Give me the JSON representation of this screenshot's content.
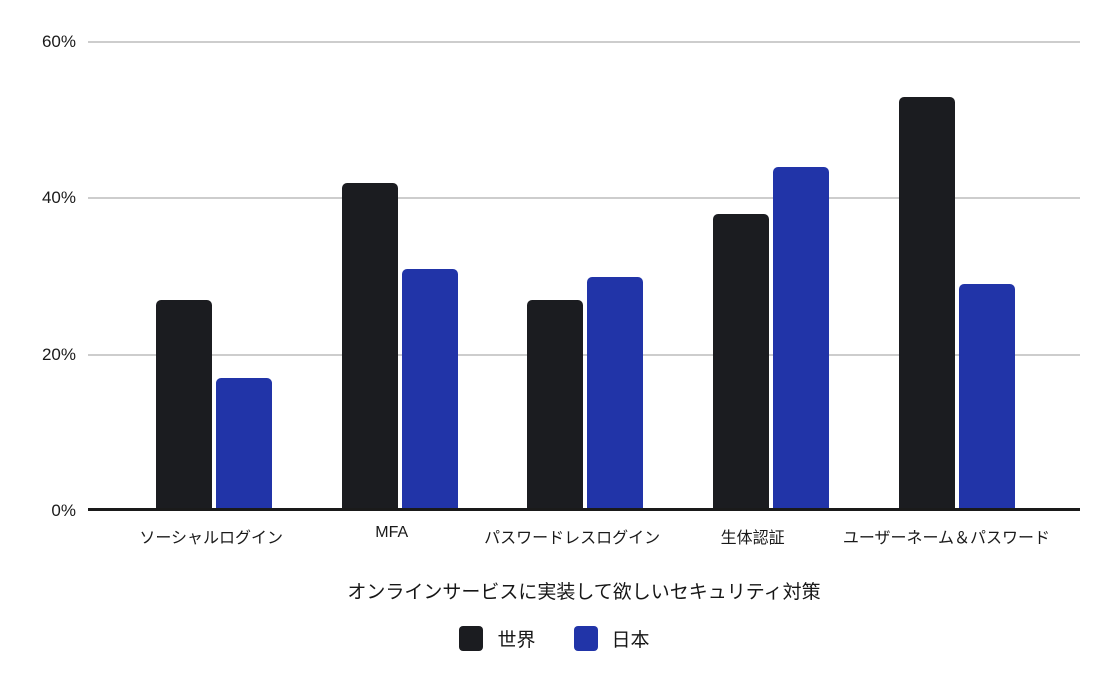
{
  "chart_data": {
    "type": "bar",
    "title": "",
    "xlabel": "オンラインサービスに実装して欲しいセキュリティ対策",
    "ylabel": "",
    "categories": [
      "ソーシャルログイン",
      "MFA",
      "パスワードレスログイン",
      "生体認証",
      "ユーザーネーム＆パスワード"
    ],
    "series": [
      {
        "name": "世界",
        "color": "#1b1c20",
        "values": [
          27,
          42,
          27,
          38,
          53
        ]
      },
      {
        "name": "日本",
        "color": "#2134a8",
        "values": [
          17,
          31,
          30,
          44,
          29
        ]
      }
    ],
    "ylim": [
      0,
      60
    ],
    "yticks": [
      0,
      20,
      40,
      60
    ],
    "ytick_labels": [
      "0%",
      "20%",
      "40%",
      "60%"
    ],
    "grid": true,
    "grid_color": "#cdcdcd",
    "axis_color": "#1a1a1a",
    "legend_position": "bottom"
  }
}
